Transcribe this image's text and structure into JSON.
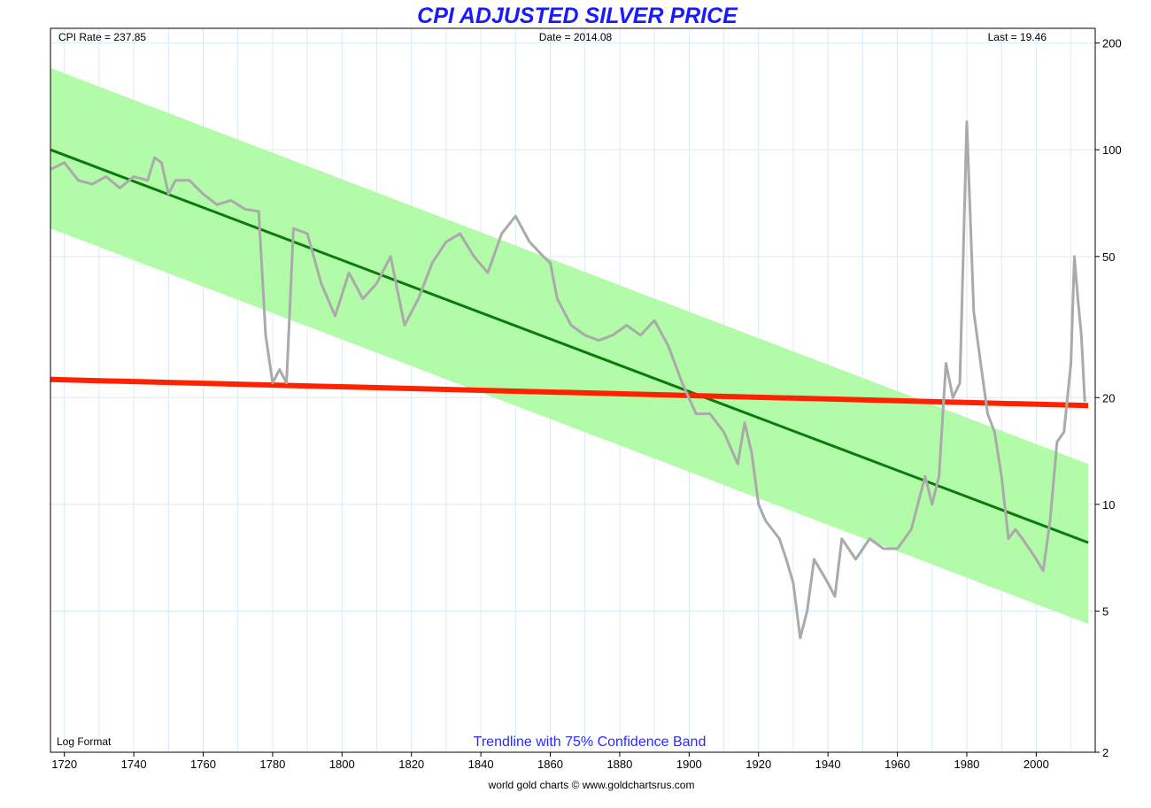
{
  "chart_data": {
    "type": "line",
    "title": "CPI ADJUSTED SILVER PRICE",
    "header": {
      "left": "CPI Rate = 237.85",
      "center": "Date = 2014.08",
      "right": "Last = 19.46"
    },
    "bottom_left_note": "Log Format",
    "subtitle": "Trendline with 75% Confidence Band",
    "credit": "world gold charts © www.goldchartsrus.com",
    "y_scale": "log",
    "xlim": [
      1716,
      2017
    ],
    "ylim": [
      2,
      220
    ],
    "x_ticks": [
      "1720",
      "1740",
      "1760",
      "1780",
      "1800",
      "1820",
      "1840",
      "1860",
      "1880",
      "1900",
      "1920",
      "1940",
      "1960",
      "1980",
      "2000"
    ],
    "y_ticks": [
      "200",
      "100",
      "50",
      "20",
      "10",
      "5",
      "2"
    ],
    "grid": true,
    "colors": {
      "price": "#aaaaaa",
      "trend": "#0b7a0b",
      "band": "#b2fba8",
      "flat_line": "#ff2200",
      "grid": "#d8ecf8"
    },
    "series": [
      {
        "name": "",
        "points": [
          [
            1716,
            88
          ],
          [
            1720,
            92
          ],
          [
            1724,
            82
          ],
          [
            1728,
            80
          ],
          [
            1732,
            84
          ],
          [
            1736,
            78
          ],
          [
            1740,
            84
          ],
          [
            1744,
            82
          ],
          [
            1746,
            95
          ],
          [
            1748,
            92
          ],
          [
            1750,
            75
          ],
          [
            1752,
            82
          ],
          [
            1756,
            82
          ],
          [
            1760,
            75
          ],
          [
            1764,
            70
          ],
          [
            1768,
            72
          ],
          [
            1772,
            68
          ],
          [
            1776,
            67
          ],
          [
            1778,
            30
          ],
          [
            1780,
            22
          ],
          [
            1782,
            24
          ],
          [
            1784,
            22
          ],
          [
            1786,
            60
          ],
          [
            1790,
            58
          ],
          [
            1794,
            42
          ],
          [
            1798,
            34
          ],
          [
            1802,
            45
          ],
          [
            1806,
            38
          ],
          [
            1810,
            42
          ],
          [
            1814,
            50
          ],
          [
            1818,
            32
          ],
          [
            1822,
            38
          ],
          [
            1826,
            48
          ],
          [
            1830,
            55
          ],
          [
            1834,
            58
          ],
          [
            1838,
            50
          ],
          [
            1842,
            45
          ],
          [
            1846,
            58
          ],
          [
            1850,
            65
          ],
          [
            1854,
            55
          ],
          [
            1858,
            50
          ],
          [
            1860,
            48
          ],
          [
            1862,
            38
          ],
          [
            1866,
            32
          ],
          [
            1870,
            30
          ],
          [
            1874,
            29
          ],
          [
            1878,
            30
          ],
          [
            1882,
            32
          ],
          [
            1886,
            30
          ],
          [
            1890,
            33
          ],
          [
            1894,
            28
          ],
          [
            1898,
            22
          ],
          [
            1902,
            18
          ],
          [
            1906,
            18
          ],
          [
            1910,
            16
          ],
          [
            1914,
            13
          ],
          [
            1916,
            17
          ],
          [
            1918,
            14
          ],
          [
            1920,
            10
          ],
          [
            1922,
            9
          ],
          [
            1926,
            8
          ],
          [
            1928,
            7
          ],
          [
            1930,
            6
          ],
          [
            1932,
            4.2
          ],
          [
            1934,
            5
          ],
          [
            1936,
            7
          ],
          [
            1940,
            6
          ],
          [
            1942,
            5.5
          ],
          [
            1944,
            8
          ],
          [
            1948,
            7
          ],
          [
            1952,
            8
          ],
          [
            1956,
            7.5
          ],
          [
            1960,
            7.5
          ],
          [
            1964,
            8.5
          ],
          [
            1968,
            12
          ],
          [
            1970,
            10
          ],
          [
            1972,
            12
          ],
          [
            1974,
            25
          ],
          [
            1976,
            20
          ],
          [
            1978,
            22
          ],
          [
            1980,
            120
          ],
          [
            1982,
            35
          ],
          [
            1984,
            25
          ],
          [
            1986,
            18
          ],
          [
            1988,
            16
          ],
          [
            1990,
            12
          ],
          [
            1992,
            8
          ],
          [
            1994,
            8.5
          ],
          [
            1996,
            8
          ],
          [
            1998,
            7.5
          ],
          [
            2000,
            7
          ],
          [
            2002,
            6.5
          ],
          [
            2004,
            9
          ],
          [
            2006,
            15
          ],
          [
            2008,
            16
          ],
          [
            2010,
            25
          ],
          [
            2011,
            50
          ],
          [
            2012,
            38
          ],
          [
            2013,
            30
          ],
          [
            2014,
            19.46
          ]
        ]
      },
      {
        "name": "",
        "points": [
          [
            1716,
            100
          ],
          [
            2015,
            7.8
          ]
        ]
      },
      {
        "name": "",
        "upper": [
          [
            1716,
            170
          ],
          [
            2015,
            13.0
          ]
        ],
        "lower": [
          [
            1716,
            60
          ],
          [
            2015,
            4.6
          ]
        ]
      },
      {
        "name": "",
        "points": [
          [
            1716,
            22.5
          ],
          [
            2015,
            19.0
          ]
        ]
      }
    ]
  }
}
